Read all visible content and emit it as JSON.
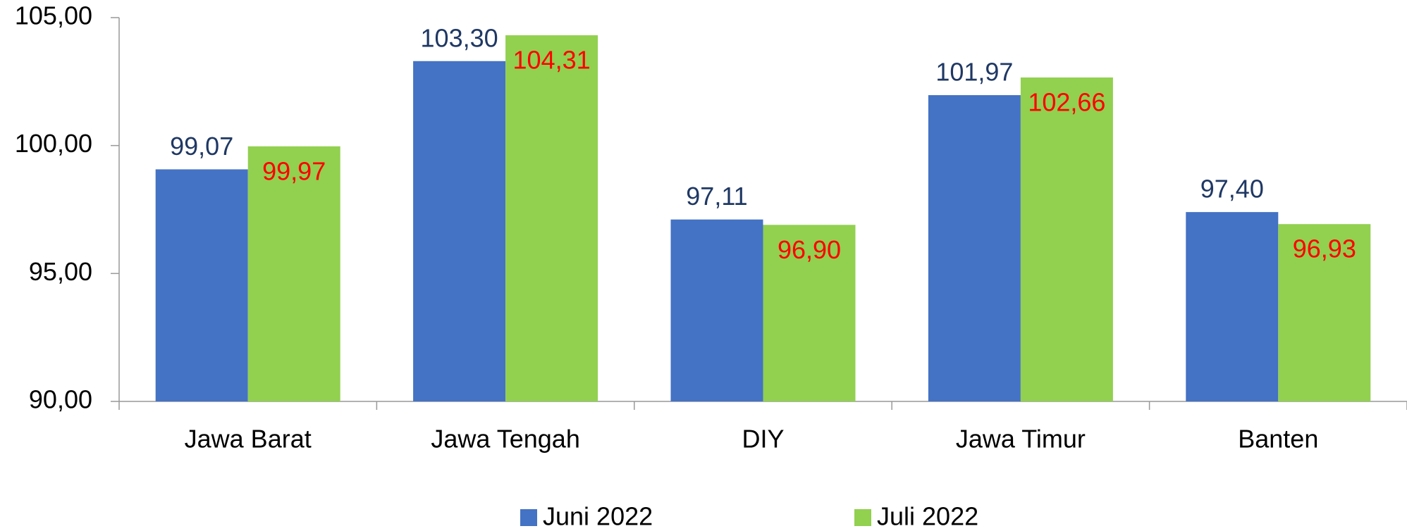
{
  "chart_data": {
    "type": "bar",
    "categories": [
      "Jawa Barat",
      "Jawa Tengah",
      "DIY",
      "Jawa Timur",
      "Banten"
    ],
    "series": [
      {
        "name": "Juni 2022",
        "color": "#4472c4",
        "label_color": "#1f3864",
        "values": [
          99.07,
          103.3,
          97.11,
          101.97,
          97.4
        ],
        "value_labels": [
          "99,07",
          "103,30",
          "97,11",
          "101,97",
          "97,40"
        ]
      },
      {
        "name": "Juli 2022",
        "color": "#92d050",
        "label_color": "#ff0000",
        "values": [
          99.97,
          104.31,
          96.9,
          102.66,
          96.93
        ],
        "value_labels": [
          "99,97",
          "104,31",
          "96,90",
          "102,66",
          "96,93"
        ]
      }
    ],
    "ylim": [
      90,
      105
    ],
    "yticks": [
      {
        "value": 90,
        "label": "90,00"
      },
      {
        "value": 95,
        "label": "95,00"
      },
      {
        "value": 100,
        "label": "100,00"
      },
      {
        "value": 105,
        "label": "105,00"
      }
    ]
  }
}
